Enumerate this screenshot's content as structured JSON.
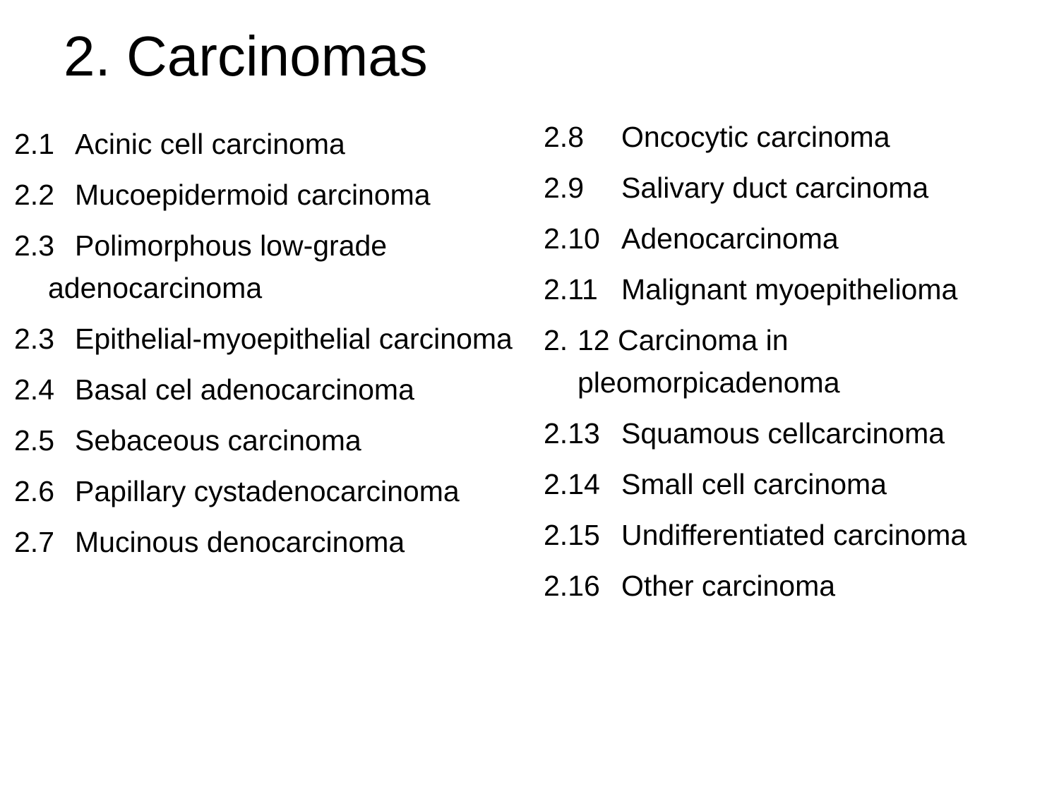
{
  "slide": {
    "title": "2. Carcinomas",
    "left_items": [
      {
        "num": "2.1",
        "text": "Acinic cell carcinoma"
      },
      {
        "num": "2.2",
        "text": "Mucoepidermoid carcinoma"
      },
      {
        "num": "2.3",
        "text": "Polimorphous low-grade adenocarcinoma"
      },
      {
        "num": "2.3",
        "text": "Epithelial-myoepithelial carcinoma"
      },
      {
        "num": "2.4",
        "text": "Basal cel adenocarcinoma"
      },
      {
        "num": "2.5",
        "text": "Sebaceous carcinoma"
      },
      {
        "num": "2.6",
        "text": "Papillary cystadenocarcinoma"
      },
      {
        "num": "2.7",
        "text": "Mucinous denocarcinoma"
      }
    ],
    "right_items": [
      {
        "num": "2.8",
        "text": "Oncocytic carcinoma"
      },
      {
        "num": "2.9",
        "text": "Salivary duct carcinoma"
      },
      {
        "num": "2.10",
        "text": "Adenocarcinoma"
      },
      {
        "num": "2.11",
        "text": "Malignant myoepithelioma"
      },
      {
        "num": "2.",
        "text": "12 Carcinoma in pleomorpicadenoma"
      },
      {
        "num": "2.13",
        "text": "Squamous cellcarcinoma"
      },
      {
        "num": "2.14",
        "text": "Small cell carcinoma"
      },
      {
        "num": "2.15",
        "text": "Undifferentiated carcinoma"
      },
      {
        "num": "2.16",
        "text": "Other carcinoma"
      }
    ]
  }
}
